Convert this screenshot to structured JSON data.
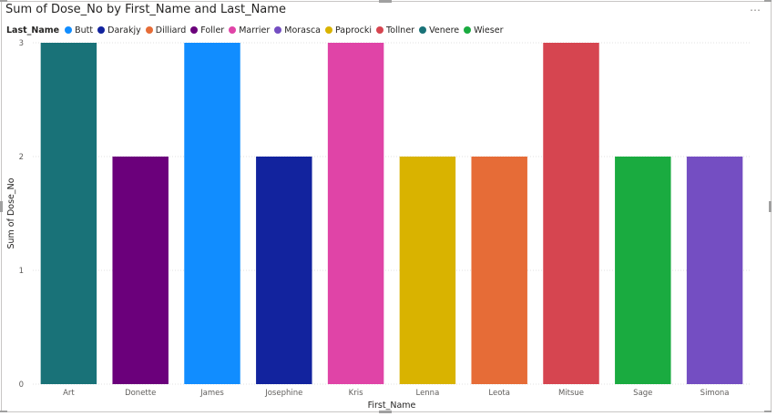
{
  "visual": {
    "title": "Sum of Dose_No by First_Name and Last_Name",
    "more_options_icon": "ellipsis-icon"
  },
  "legend": {
    "title": "Last_Name",
    "items": [
      {
        "label": "Butt",
        "color": "#118DFF"
      },
      {
        "label": "Darakjy",
        "color": "#12239E"
      },
      {
        "label": "Dilliard",
        "color": "#E66C37"
      },
      {
        "label": "Foller",
        "color": "#6B007B"
      },
      {
        "label": "Marrier",
        "color": "#E044A7"
      },
      {
        "label": "Morasca",
        "color": "#744EC2"
      },
      {
        "label": "Paprocki",
        "color": "#D9B300"
      },
      {
        "label": "Tollner",
        "color": "#D64550"
      },
      {
        "label": "Venere",
        "color": "#197278"
      },
      {
        "label": "Wieser",
        "color": "#1AAB40"
      }
    ]
  },
  "chart_data": {
    "type": "bar",
    "title": "Sum of Dose_No by First_Name and Last_Name",
    "xlabel": "First_Name",
    "ylabel": "Sum of Dose_No",
    "ylim": [
      0,
      3
    ],
    "yticks": [
      0,
      1,
      2,
      3
    ],
    "grid": true,
    "legend_position": "top-left",
    "categories": [
      "Art",
      "Donette",
      "James",
      "Josephine",
      "Kris",
      "Lenna",
      "Leota",
      "Mitsue",
      "Sage",
      "Simona"
    ],
    "values": [
      3,
      2,
      3,
      2,
      3,
      2,
      2,
      3,
      2,
      2
    ],
    "bar_series": [
      "Venere",
      "Foller",
      "Butt",
      "Darakjy",
      "Marrier",
      "Paprocki",
      "Dilliard",
      "Tollner",
      "Wieser",
      "Morasca"
    ]
  }
}
